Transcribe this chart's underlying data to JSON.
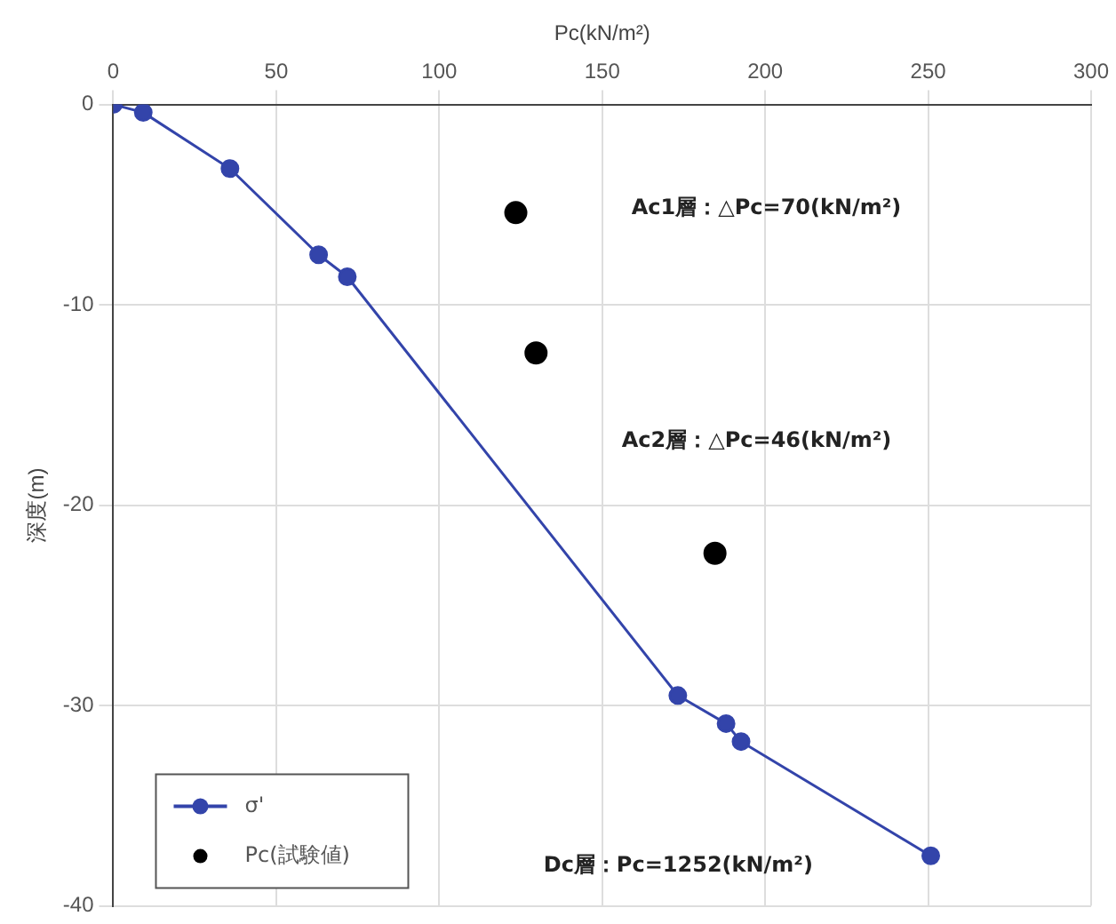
{
  "chart_data": {
    "type": "line",
    "xlabel": "Pc(kN/m²)",
    "ylabel": "深度(m)",
    "xlim": [
      0,
      300
    ],
    "xticks": [
      0,
      50,
      100,
      150,
      200,
      250,
      300
    ],
    "ylim": [
      -40,
      0
    ],
    "yticks": [
      -40,
      -30,
      -20,
      -10,
      0
    ],
    "grid": true,
    "legend": "bottom left",
    "marker": "circle",
    "line_style": "solid",
    "series": [
      {
        "name": "σ'",
        "color": "#3344aa",
        "x": [
          0,
          9.2,
          35.8,
          63,
          71.8,
          173.2,
          188,
          192.6,
          250.8
        ],
        "values": [
          0,
          -0.4,
          -3.2,
          -7.5,
          -8.6,
          -29.5,
          -30.9,
          -31.8,
          -37.5
        ]
      },
      {
        "name": "Pc(試験値)",
        "type": "scatter",
        "color": "#000000",
        "x": [
          123.5,
          129.7,
          184.6
        ],
        "values": [
          -5.4,
          -12.4,
          -22.4
        ]
      }
    ],
    "annotations": [
      "Ac1層：△Pc=70(kN/m²)",
      "Ac2層：△Pc=46(kN/m²)",
      "Dc層：Pc=1252(kN/m²)"
    ]
  }
}
